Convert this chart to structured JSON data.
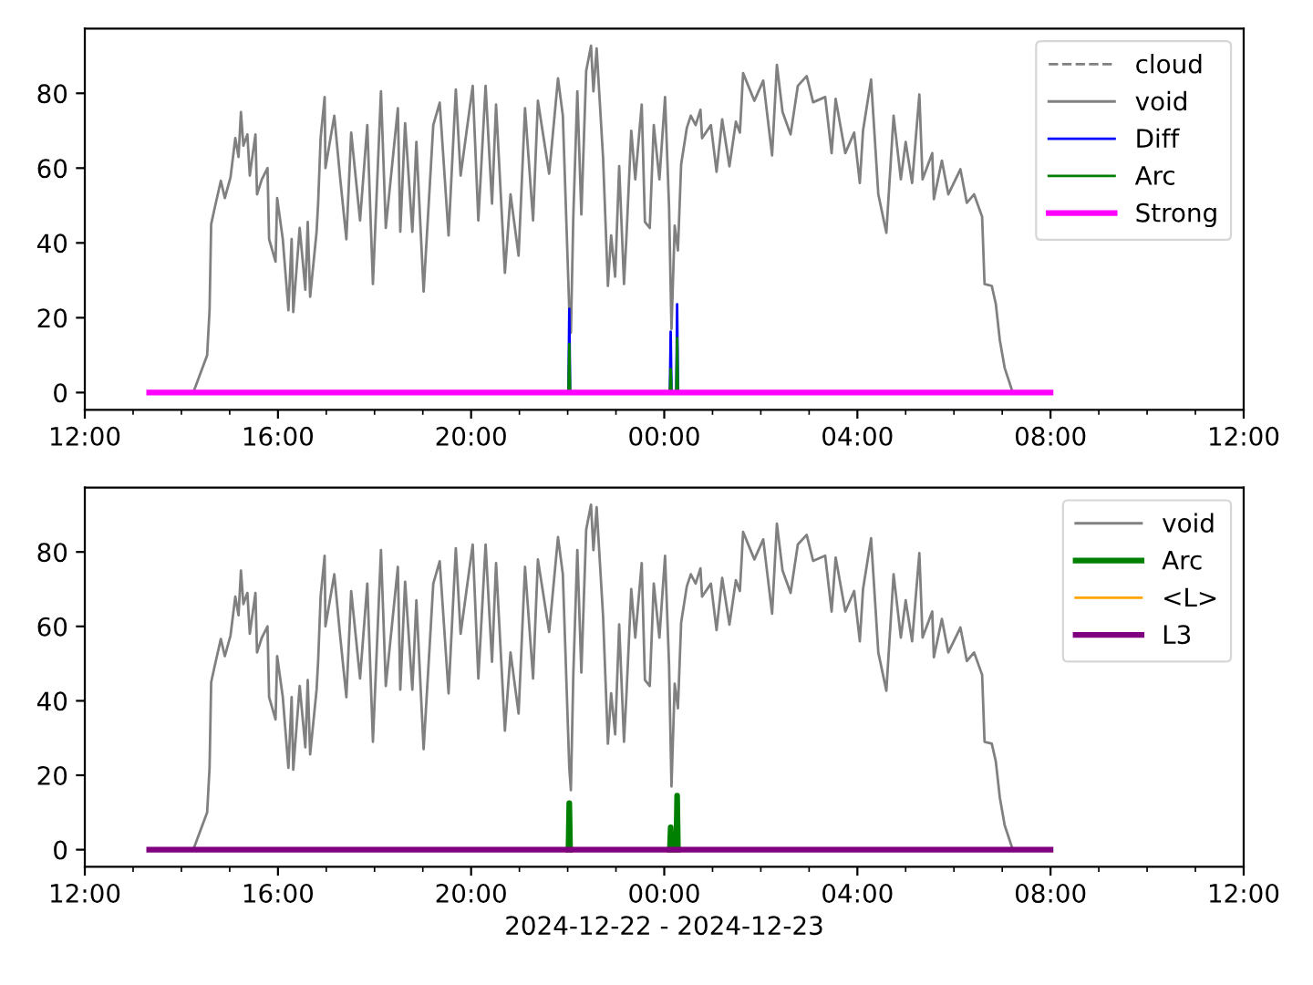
{
  "chart_data": [
    {
      "type": "line",
      "xlim": [
        "2024-12-22T12:00",
        "2024-12-23T12:00"
      ],
      "xticks": [
        {
          "value": "2024-12-22T12:00",
          "label": "12:00"
        },
        {
          "value": "2024-12-22T13:00",
          "label": null
        },
        {
          "value": "2024-12-22T14:00",
          "label": null
        },
        {
          "value": "2024-12-22T15:00",
          "label": null
        },
        {
          "value": "2024-12-22T16:00",
          "label": "16:00"
        },
        {
          "value": "2024-12-22T17:00",
          "label": null
        },
        {
          "value": "2024-12-22T18:00",
          "label": null
        },
        {
          "value": "2024-12-22T19:00",
          "label": null
        },
        {
          "value": "2024-12-22T20:00",
          "label": "20:00"
        },
        {
          "value": "2024-12-22T21:00",
          "label": null
        },
        {
          "value": "2024-12-22T22:00",
          "label": null
        },
        {
          "value": "2024-12-22T23:00",
          "label": null
        },
        {
          "value": "2024-12-23T00:00",
          "label": "00:00"
        },
        {
          "value": "2024-12-23T01:00",
          "label": null
        },
        {
          "value": "2024-12-23T02:00",
          "label": null
        },
        {
          "value": "2024-12-23T03:00",
          "label": null
        },
        {
          "value": "2024-12-23T04:00",
          "label": "04:00"
        },
        {
          "value": "2024-12-23T05:00",
          "label": null
        },
        {
          "value": "2024-12-23T06:00",
          "label": null
        },
        {
          "value": "2024-12-23T07:00",
          "label": null
        },
        {
          "value": "2024-12-23T08:00",
          "label": "08:00"
        },
        {
          "value": "2024-12-23T09:00",
          "label": null
        },
        {
          "value": "2024-12-23T10:00",
          "label": null
        },
        {
          "value": "2024-12-23T11:00",
          "label": null
        },
        {
          "value": "2024-12-23T12:00",
          "label": "12:00"
        }
      ],
      "ylim": [
        -4.6,
        97.3
      ],
      "yticks": [
        0,
        20,
        40,
        60,
        80
      ],
      "legend": "top right",
      "grid": false,
      "series": [
        {
          "name": "cloud",
          "color": "#808080",
          "line_style": "dashed"
        },
        {
          "name": "void",
          "color": "#808080",
          "x": [
            "2024-12-22T14:16",
            "2024-12-22T14:32",
            "2024-12-22T14:35",
            "2024-12-22T14:37",
            "2024-12-22T14:41",
            "2024-12-22T14:49",
            "2024-12-22T14:54",
            "2024-12-22T15:01",
            "2024-12-22T15:07",
            "2024-12-22T15:11",
            "2024-12-22T15:14",
            "2024-12-22T15:17",
            "2024-12-22T15:22",
            "2024-12-22T15:25",
            "2024-12-22T15:32",
            "2024-12-22T15:34",
            "2024-12-22T15:40",
            "2024-12-22T15:47",
            "2024-12-22T15:49",
            "2024-12-22T15:57",
            "2024-12-22T15:59",
            "2024-12-22T16:06",
            "2024-12-22T16:13",
            "2024-12-22T16:17",
            "2024-12-22T16:19",
            "2024-12-22T16:27",
            "2024-12-22T16:34",
            "2024-12-22T16:37",
            "2024-12-22T16:40",
            "2024-12-22T16:48",
            "2024-12-22T16:50",
            "2024-12-22T16:53",
            "2024-12-22T16:58",
            "2024-12-22T16:59",
            "2024-12-22T17:10",
            "2024-12-22T17:17",
            "2024-12-22T17:25",
            "2024-12-22T17:31",
            "2024-12-22T17:42",
            "2024-12-22T17:51",
            "2024-12-22T17:58",
            "2024-12-22T18:08",
            "2024-12-22T18:14",
            "2024-12-22T18:29",
            "2024-12-22T18:32",
            "2024-12-22T18:38",
            "2024-12-22T18:47",
            "2024-12-22T18:52",
            "2024-12-22T19:01",
            "2024-12-22T19:13",
            "2024-12-22T19:21",
            "2024-12-22T19:32",
            "2024-12-22T19:41",
            "2024-12-22T19:47",
            "2024-12-22T20:02",
            "2024-12-22T20:09",
            "2024-12-22T20:18",
            "2024-12-22T20:26",
            "2024-12-22T20:31",
            "2024-12-22T20:42",
            "2024-12-22T20:49",
            "2024-12-22T20:59",
            "2024-12-22T21:07",
            "2024-12-22T21:17",
            "2024-12-22T21:23",
            "2024-12-22T21:37",
            "2024-12-22T21:48",
            "2024-12-22T21:54",
            "2024-12-22T22:02",
            "2024-12-22T22:04",
            "2024-12-22T22:07",
            "2024-12-22T22:12",
            "2024-12-22T22:17",
            "2024-12-22T22:23",
            "2024-12-22T22:29",
            "2024-12-22T22:32",
            "2024-12-22T22:36",
            "2024-12-22T22:39",
            "2024-12-22T22:44",
            "2024-12-22T22:50",
            "2024-12-22T22:54",
            "2024-12-22T22:59",
            "2024-12-22T23:04",
            "2024-12-22T23:10",
            "2024-12-22T23:13",
            "2024-12-22T23:19",
            "2024-12-22T23:24",
            "2024-12-22T23:32",
            "2024-12-22T23:36",
            "2024-12-22T23:42",
            "2024-12-22T23:47",
            "2024-12-22T23:54",
            "2024-12-23T00:01",
            "2024-12-23T00:06",
            "2024-12-23T00:09",
            "2024-12-23T00:13",
            "2024-12-23T00:17",
            "2024-12-23T00:21",
            "2024-12-23T00:28",
            "2024-12-23T00:33",
            "2024-12-23T00:39",
            "2024-12-23T00:45",
            "2024-12-23T00:47",
            "2024-12-23T00:58",
            "2024-12-23T01:05",
            "2024-12-23T01:12",
            "2024-12-23T01:21",
            "2024-12-23T01:29",
            "2024-12-23T01:34",
            "2024-12-23T01:38",
            "2024-12-23T01:52",
            "2024-12-23T02:03",
            "2024-12-23T02:14",
            "2024-12-23T02:20",
            "2024-12-23T02:27",
            "2024-12-23T02:37",
            "2024-12-23T02:46",
            "2024-12-23T02:57",
            "2024-12-23T03:05",
            "2024-12-23T03:20",
            "2024-12-23T03:28",
            "2024-12-23T03:33",
            "2024-12-23T03:45",
            "2024-12-23T03:56",
            "2024-12-23T04:03",
            "2024-12-23T04:07",
            "2024-12-23T04:17",
            "2024-12-23T04:26",
            "2024-12-23T04:36",
            "2024-12-23T04:45",
            "2024-12-23T04:54",
            "2024-12-23T05:00",
            "2024-12-23T05:08",
            "2024-12-23T05:17",
            "2024-12-23T05:21",
            "2024-12-23T05:33",
            "2024-12-23T05:35",
            "2024-12-23T05:45",
            "2024-12-23T05:53",
            "2024-12-23T06:08",
            "2024-12-23T06:16",
            "2024-12-23T06:25",
            "2024-12-23T06:35",
            "2024-12-23T06:38",
            "2024-12-23T06:47",
            "2024-12-23T06:52",
            "2024-12-23T06:57",
            "2024-12-23T07:03",
            "2024-12-23T07:12"
          ],
          "values": [
            0.7,
            10,
            22,
            45,
            49,
            56.6,
            52,
            57.5,
            68,
            63,
            75,
            66,
            69,
            58,
            69,
            53,
            57,
            60,
            41,
            35,
            52,
            41,
            22,
            41,
            21.5,
            44,
            27.5,
            45.6,
            25.6,
            43,
            51,
            68,
            79,
            60,
            74,
            58,
            41,
            69.5,
            46,
            71.5,
            29,
            80.5,
            44,
            76,
            43,
            72,
            43,
            67,
            27,
            71.5,
            77.5,
            42,
            81,
            58,
            82,
            46,
            82,
            50.5,
            77,
            32,
            53,
            36.6,
            76,
            46,
            78,
            58.5,
            84,
            74,
            22,
            16,
            47,
            80.5,
            47.6,
            86,
            92.7,
            80.5,
            92,
            81,
            62.7,
            28.5,
            42,
            31,
            60.5,
            29,
            41.5,
            70,
            57,
            77,
            45.6,
            44,
            71.5,
            57,
            79,
            49.5,
            17,
            44.6,
            38,
            61,
            70.7,
            74,
            71.5,
            75.6,
            68,
            71.5,
            59,
            73,
            60.5,
            72.4,
            69.5,
            85.4,
            78,
            83.4,
            63.4,
            87.6,
            75,
            69,
            82,
            84.6,
            77.6,
            79,
            64,
            78.5,
            64,
            69.5,
            56,
            70,
            83.7,
            53,
            42.7,
            74,
            57,
            67,
            56,
            79.7,
            57,
            64,
            51.7,
            62,
            53,
            59.7,
            50.7,
            53,
            47,
            29,
            28.5,
            23.7,
            14,
            6.6,
            0.7
          ]
        },
        {
          "name": "Diff",
          "color": "#0000ff",
          "x": [
            "2024-12-22T22:01",
            "2024-12-22T22:02",
            "2024-12-22T22:03",
            "2024-12-23T00:00",
            "2024-12-23T00:07",
            "2024-12-23T00:08",
            "2024-12-23T00:09",
            "2024-12-23T00:12",
            "2024-12-23T00:15",
            "2024-12-23T00:16",
            "2024-12-23T00:17"
          ],
          "values": [
            0,
            22.4,
            0,
            null,
            0,
            16.3,
            0,
            null,
            0,
            23.6,
            0
          ]
        },
        {
          "name": "Arc",
          "color": "#008000",
          "x": [
            "2024-12-22T22:01",
            "2024-12-22T22:02",
            "2024-12-22T22:03",
            "2024-12-23T00:00",
            "2024-12-23T00:07",
            "2024-12-23T00:08",
            "2024-12-23T00:09",
            "2024-12-23T00:12",
            "2024-12-23T00:15",
            "2024-12-23T00:16",
            "2024-12-23T00:17"
          ],
          "values": [
            0,
            13,
            0,
            null,
            0,
            6.3,
            0,
            null,
            0,
            14.6,
            0
          ]
        },
        {
          "name": "Strong",
          "color": "#ff00ff",
          "x": [
            "2024-12-22T13:20",
            "2024-12-23T08:00"
          ],
          "values": [
            0,
            0
          ]
        }
      ]
    },
    {
      "type": "line",
      "xlabel": "2024-12-22 - 2024-12-23",
      "xlim": [
        "2024-12-22T12:00",
        "2024-12-23T12:00"
      ],
      "xticks": [
        {
          "value": "2024-12-22T12:00",
          "label": "12:00"
        },
        {
          "value": "2024-12-22T13:00",
          "label": null
        },
        {
          "value": "2024-12-22T14:00",
          "label": null
        },
        {
          "value": "2024-12-22T15:00",
          "label": null
        },
        {
          "value": "2024-12-22T16:00",
          "label": "16:00"
        },
        {
          "value": "2024-12-22T17:00",
          "label": null
        },
        {
          "value": "2024-12-22T18:00",
          "label": null
        },
        {
          "value": "2024-12-22T19:00",
          "label": null
        },
        {
          "value": "2024-12-22T20:00",
          "label": "20:00"
        },
        {
          "value": "2024-12-22T21:00",
          "label": null
        },
        {
          "value": "2024-12-22T22:00",
          "label": null
        },
        {
          "value": "2024-12-22T23:00",
          "label": null
        },
        {
          "value": "2024-12-23T00:00",
          "label": "00:00"
        },
        {
          "value": "2024-12-23T01:00",
          "label": null
        },
        {
          "value": "2024-12-23T02:00",
          "label": null
        },
        {
          "value": "2024-12-23T03:00",
          "label": null
        },
        {
          "value": "2024-12-23T04:00",
          "label": "04:00"
        },
        {
          "value": "2024-12-23T05:00",
          "label": null
        },
        {
          "value": "2024-12-23T06:00",
          "label": null
        },
        {
          "value": "2024-12-23T07:00",
          "label": null
        },
        {
          "value": "2024-12-23T08:00",
          "label": "08:00"
        },
        {
          "value": "2024-12-23T09:00",
          "label": null
        },
        {
          "value": "2024-12-23T10:00",
          "label": null
        },
        {
          "value": "2024-12-23T11:00",
          "label": null
        },
        {
          "value": "2024-12-23T12:00",
          "label": "12:00"
        }
      ],
      "ylim": [
        -4.6,
        97.3
      ],
      "yticks": [
        0,
        20,
        40,
        60,
        80
      ],
      "legend": "top right",
      "grid": false,
      "series": [
        {
          "name": "void",
          "color": "#808080",
          "x": [
            "2024-12-22T14:16",
            "2024-12-22T14:32",
            "2024-12-22T14:35",
            "2024-12-22T14:37",
            "2024-12-22T14:41",
            "2024-12-22T14:49",
            "2024-12-22T14:54",
            "2024-12-22T15:01",
            "2024-12-22T15:07",
            "2024-12-22T15:11",
            "2024-12-22T15:14",
            "2024-12-22T15:17",
            "2024-12-22T15:22",
            "2024-12-22T15:25",
            "2024-12-22T15:32",
            "2024-12-22T15:34",
            "2024-12-22T15:40",
            "2024-12-22T15:47",
            "2024-12-22T15:49",
            "2024-12-22T15:57",
            "2024-12-22T15:59",
            "2024-12-22T16:06",
            "2024-12-22T16:13",
            "2024-12-22T16:17",
            "2024-12-22T16:19",
            "2024-12-22T16:27",
            "2024-12-22T16:34",
            "2024-12-22T16:37",
            "2024-12-22T16:40",
            "2024-12-22T16:48",
            "2024-12-22T16:50",
            "2024-12-22T16:53",
            "2024-12-22T16:58",
            "2024-12-22T16:59",
            "2024-12-22T17:10",
            "2024-12-22T17:17",
            "2024-12-22T17:25",
            "2024-12-22T17:31",
            "2024-12-22T17:42",
            "2024-12-22T17:51",
            "2024-12-22T17:58",
            "2024-12-22T18:08",
            "2024-12-22T18:14",
            "2024-12-22T18:29",
            "2024-12-22T18:32",
            "2024-12-22T18:38",
            "2024-12-22T18:47",
            "2024-12-22T18:52",
            "2024-12-22T19:01",
            "2024-12-22T19:13",
            "2024-12-22T19:21",
            "2024-12-22T19:32",
            "2024-12-22T19:41",
            "2024-12-22T19:47",
            "2024-12-22T20:02",
            "2024-12-22T20:09",
            "2024-12-22T20:18",
            "2024-12-22T20:26",
            "2024-12-22T20:31",
            "2024-12-22T20:42",
            "2024-12-22T20:49",
            "2024-12-22T20:59",
            "2024-12-22T21:07",
            "2024-12-22T21:17",
            "2024-12-22T21:23",
            "2024-12-22T21:37",
            "2024-12-22T21:48",
            "2024-12-22T21:54",
            "2024-12-22T22:02",
            "2024-12-22T22:04",
            "2024-12-22T22:07",
            "2024-12-22T22:12",
            "2024-12-22T22:17",
            "2024-12-22T22:23",
            "2024-12-22T22:29",
            "2024-12-22T22:32",
            "2024-12-22T22:36",
            "2024-12-22T22:39",
            "2024-12-22T22:44",
            "2024-12-22T22:50",
            "2024-12-22T22:54",
            "2024-12-22T22:59",
            "2024-12-22T23:04",
            "2024-12-22T23:10",
            "2024-12-22T23:13",
            "2024-12-22T23:19",
            "2024-12-22T23:24",
            "2024-12-22T23:32",
            "2024-12-22T23:36",
            "2024-12-22T23:42",
            "2024-12-22T23:47",
            "2024-12-22T23:54",
            "2024-12-23T00:01",
            "2024-12-23T00:06",
            "2024-12-23T00:09",
            "2024-12-23T00:13",
            "2024-12-23T00:17",
            "2024-12-23T00:21",
            "2024-12-23T00:28",
            "2024-12-23T00:33",
            "2024-12-23T00:39",
            "2024-12-23T00:45",
            "2024-12-23T00:47",
            "2024-12-23T00:58",
            "2024-12-23T01:05",
            "2024-12-23T01:12",
            "2024-12-23T01:21",
            "2024-12-23T01:29",
            "2024-12-23T01:34",
            "2024-12-23T01:38",
            "2024-12-23T01:52",
            "2024-12-23T02:03",
            "2024-12-23T02:14",
            "2024-12-23T02:20",
            "2024-12-23T02:27",
            "2024-12-23T02:37",
            "2024-12-23T02:46",
            "2024-12-23T02:57",
            "2024-12-23T03:05",
            "2024-12-23T03:20",
            "2024-12-23T03:28",
            "2024-12-23T03:33",
            "2024-12-23T03:45",
            "2024-12-23T03:56",
            "2024-12-23T04:03",
            "2024-12-23T04:07",
            "2024-12-23T04:17",
            "2024-12-23T04:26",
            "2024-12-23T04:36",
            "2024-12-23T04:45",
            "2024-12-23T04:54",
            "2024-12-23T05:00",
            "2024-12-23T05:08",
            "2024-12-23T05:17",
            "2024-12-23T05:21",
            "2024-12-23T05:33",
            "2024-12-23T05:35",
            "2024-12-23T05:45",
            "2024-12-23T05:53",
            "2024-12-23T06:08",
            "2024-12-23T06:16",
            "2024-12-23T06:25",
            "2024-12-23T06:35",
            "2024-12-23T06:38",
            "2024-12-23T06:47",
            "2024-12-23T06:52",
            "2024-12-23T06:57",
            "2024-12-23T07:03",
            "2024-12-23T07:12"
          ],
          "values": [
            0.7,
            10,
            22,
            45,
            49,
            56.6,
            52,
            57.5,
            68,
            63,
            75,
            66,
            69,
            58,
            69,
            53,
            57,
            60,
            41,
            35,
            52,
            41,
            22,
            41,
            21.5,
            44,
            27.5,
            45.6,
            25.6,
            43,
            51,
            68,
            79,
            60,
            74,
            58,
            41,
            69.5,
            46,
            71.5,
            29,
            80.5,
            44,
            76,
            43,
            72,
            43,
            67,
            27,
            71.5,
            77.5,
            42,
            81,
            58,
            82,
            46,
            82,
            50.5,
            77,
            32,
            53,
            36.6,
            76,
            46,
            78,
            58.5,
            84,
            74,
            22,
            16,
            47,
            80.5,
            47.6,
            86,
            92.7,
            80.5,
            92,
            81,
            62.7,
            28.5,
            42,
            31,
            60.5,
            29,
            41.5,
            70,
            57,
            77,
            45.6,
            44,
            71.5,
            57,
            79,
            49.5,
            17,
            44.6,
            38,
            61,
            70.7,
            74,
            71.5,
            75.6,
            68,
            71.5,
            59,
            73,
            60.5,
            72.4,
            69.5,
            85.4,
            78,
            83.4,
            63.4,
            87.6,
            75,
            69,
            82,
            84.6,
            77.6,
            79,
            64,
            78.5,
            64,
            69.5,
            56,
            70,
            83.7,
            53,
            42.7,
            74,
            57,
            67,
            56,
            79.7,
            57,
            64,
            51.7,
            62,
            53,
            59.7,
            50.7,
            53,
            47,
            29,
            28.5,
            23.7,
            14,
            6.6,
            0.7
          ]
        },
        {
          "name": "Arc",
          "color": "#008000",
          "x": [
            "2024-12-22T22:01",
            "2024-12-22T22:02",
            "2024-12-22T22:03",
            "2024-12-23T00:00",
            "2024-12-23T00:07",
            "2024-12-23T00:08",
            "2024-12-23T00:09",
            "2024-12-23T00:12",
            "2024-12-23T00:15",
            "2024-12-23T00:16",
            "2024-12-23T00:17"
          ],
          "values": [
            0,
            12.5,
            0,
            null,
            0,
            6,
            0,
            null,
            0,
            14.5,
            0
          ]
        },
        {
          "name": "<L>",
          "color": "#ffa500"
        },
        {
          "name": "L3",
          "color": "#800080",
          "x": [
            "2024-12-22T13:20",
            "2024-12-23T08:00"
          ],
          "values": [
            0,
            0
          ]
        }
      ]
    }
  ]
}
